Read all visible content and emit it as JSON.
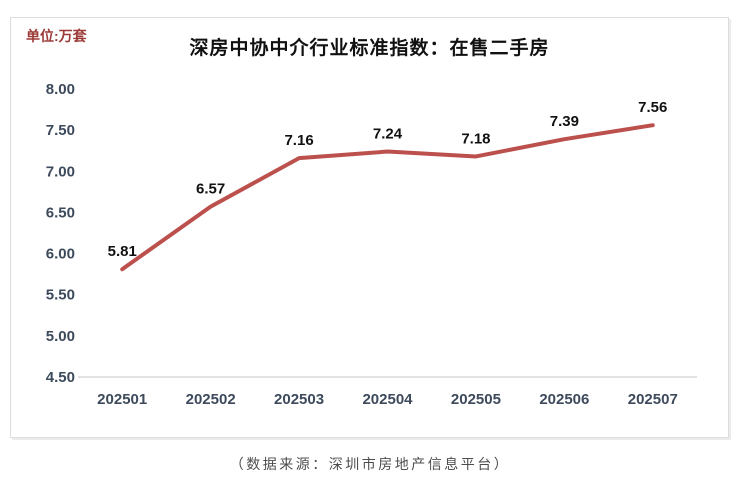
{
  "header": {
    "unit_label": "单位:万套",
    "title": "深房中协中介行业标准指数：在售二手房"
  },
  "footer": {
    "source_note": "（数据来源：深圳市房地产信息平台）"
  },
  "colors": {
    "line": "#bc504d",
    "unit_label_text": "#9c3a36",
    "axis_text": "#3d4a5c",
    "data_label_text": "#111111",
    "baseline": "#d9d9d9",
    "frame_border": "#dcdcdc",
    "source_text": "#4d4d4d"
  },
  "chart_data": {
    "type": "line",
    "title": "深房中协中介行业标准指数：在售二手房",
    "unit": "单位:万套",
    "categories": [
      "202501",
      "202502",
      "202503",
      "202504",
      "202505",
      "202506",
      "202507"
    ],
    "values": [
      5.81,
      6.57,
      7.16,
      7.24,
      7.18,
      7.39,
      7.56
    ],
    "data_labels": [
      "5.81",
      "6.57",
      "7.16",
      "7.24",
      "7.18",
      "7.39",
      "7.56"
    ],
    "xlabel": "",
    "ylabel": "单位:万套",
    "ylim": [
      4.5,
      8.0
    ],
    "ytick_step": 0.5,
    "yticks": [
      "8.00",
      "7.50",
      "7.00",
      "6.50",
      "6.00",
      "5.50",
      "5.00",
      "4.50"
    ],
    "grid": "baseline-only",
    "legend": "none",
    "line_color": "#bc504d",
    "markers": false
  }
}
